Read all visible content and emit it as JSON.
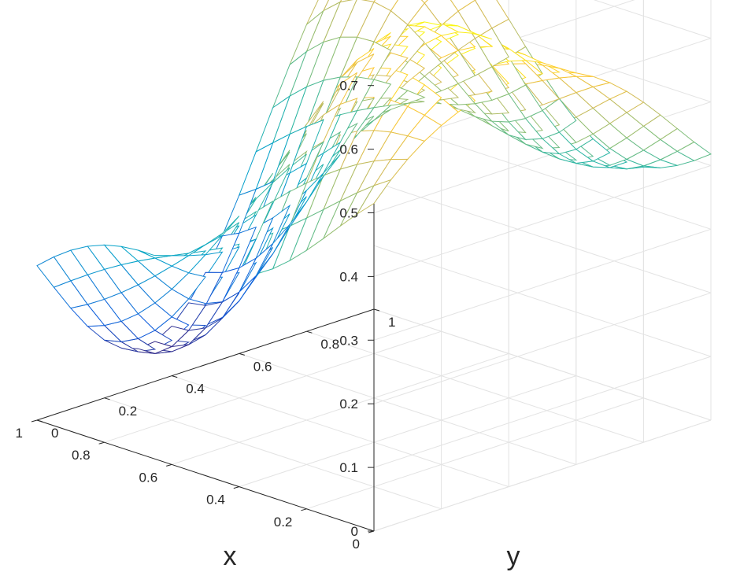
{
  "chart_data": {
    "type": "surface-mesh",
    "title": "",
    "xlabel": "x",
    "ylabel": "y",
    "zlabel": "",
    "xlim": [
      0,
      1
    ],
    "ylim": [
      0,
      1
    ],
    "zlim": [
      0,
      0.7
    ],
    "x_ticks": [
      "0",
      "0.2",
      "0.4",
      "0.6",
      "0.8",
      "1"
    ],
    "y_ticks": [
      "0",
      "0.2",
      "0.4",
      "0.6",
      "0.8",
      "1"
    ],
    "z_ticks": [
      "0",
      "0.1",
      "0.2",
      "0.3",
      "0.4",
      "0.5",
      "0.6",
      "0.7"
    ],
    "grid": true,
    "colormap": "parula",
    "mesh": {
      "n": 21,
      "x_range": [
        0,
        1
      ],
      "y_range": [
        0,
        1
      ],
      "corner_values": {
        "x0_y0": 0.4,
        "x0_y1": 0.55,
        "x1_y0": 0.06,
        "x1_y1": 0.34
      },
      "peaks": [
        {
          "x": 0.0,
          "y": 0.35,
          "z": 0.69
        },
        {
          "x": 0.08,
          "y": 0.95,
          "z": 0.42
        },
        {
          "x": 0.85,
          "y": 0.85,
          "z": 0.35
        }
      ]
    }
  },
  "colors": {
    "background": "#ffffff",
    "grid": "#e3e3e3",
    "axis": "#262626",
    "colormap_stops": [
      "#352a87",
      "#0f5cdd",
      "#1481d6",
      "#06a4ca",
      "#2eb7a4",
      "#87bf77",
      "#d1bb59",
      "#fec832",
      "#f9fb0e"
    ]
  }
}
